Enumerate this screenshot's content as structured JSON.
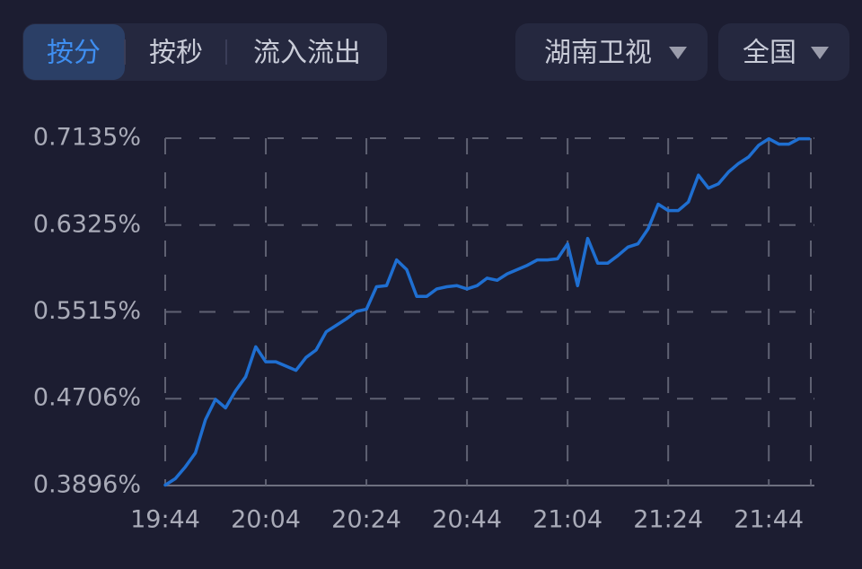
{
  "controls": {
    "tabs": [
      "按分",
      "按秒",
      "流入流出"
    ],
    "active_tab": 0,
    "dropdowns": [
      "湖南卫视",
      "全国"
    ]
  },
  "chart_data": {
    "type": "line",
    "categories": [
      "19:44",
      null,
      null,
      null,
      null,
      null,
      null,
      null,
      null,
      null,
      "20:04",
      null,
      null,
      null,
      null,
      null,
      null,
      null,
      null,
      null,
      "20:24",
      null,
      null,
      null,
      null,
      null,
      null,
      null,
      null,
      null,
      "20:44",
      null,
      null,
      null,
      null,
      null,
      null,
      null,
      null,
      null,
      "21:04",
      null,
      null,
      null,
      null,
      null,
      null,
      null,
      null,
      null,
      "21:24",
      null,
      null,
      null,
      null,
      null,
      null,
      null,
      null,
      null,
      "21:44",
      null,
      null,
      null,
      null
    ],
    "series": [
      {
        "color": "#1f6fd1",
        "values": [
          0.39,
          0.396,
          0.407,
          0.42,
          0.451,
          0.47,
          0.462,
          0.478,
          0.491,
          0.519,
          0.505,
          0.505,
          0.501,
          0.497,
          0.509,
          0.516,
          0.533,
          0.539,
          0.545,
          0.552,
          0.554,
          0.575,
          0.576,
          0.6,
          0.591,
          0.566,
          0.566,
          0.573,
          0.575,
          0.576,
          0.573,
          0.576,
          0.583,
          0.581,
          0.587,
          0.591,
          0.595,
          0.6,
          0.6,
          0.601,
          0.615,
          0.576,
          0.62,
          0.597,
          0.597,
          0.604,
          0.612,
          0.615,
          0.629,
          0.652,
          0.646,
          0.646,
          0.654,
          0.679,
          0.667,
          0.671,
          0.682,
          0.69,
          0.696,
          0.707,
          0.713,
          0.708,
          0.708,
          0.713,
          0.713
        ]
      }
    ],
    "ylim": [
      0.3896,
      0.7135
    ],
    "yticks": [
      {
        "value": 0.3896,
        "label": "0.3896%"
      },
      {
        "value": 0.4706,
        "label": "0.4706%"
      },
      {
        "value": 0.5515,
        "label": "0.5515%"
      },
      {
        "value": 0.6325,
        "label": "0.6325%"
      },
      {
        "value": 0.7135,
        "label": "0.7135%"
      }
    ],
    "grid": true
  }
}
